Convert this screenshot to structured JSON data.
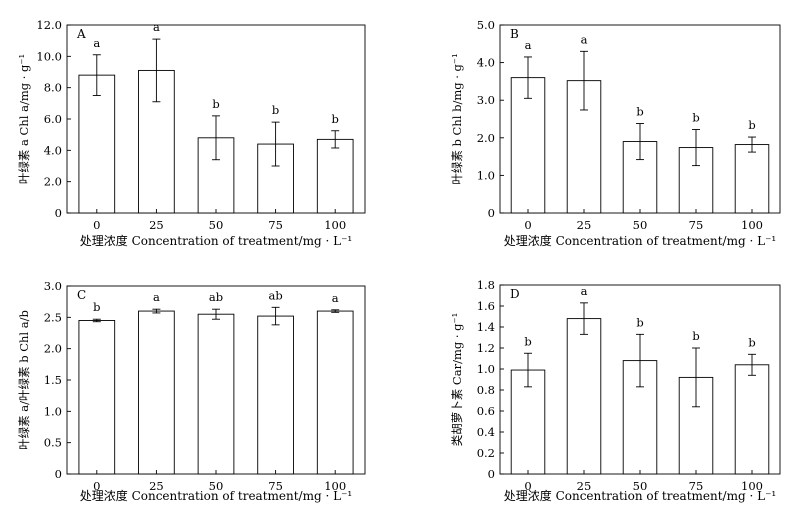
{
  "chart_data": [
    {
      "panel": "A",
      "type": "bar",
      "categories": [
        "0",
        "25",
        "50",
        "75",
        "100"
      ],
      "values": [
        8.8,
        9.1,
        4.8,
        4.4,
        4.7
      ],
      "errors": [
        1.3,
        2.0,
        1.4,
        1.4,
        0.55
      ],
      "labels": [
        "a",
        "a",
        "b",
        "b",
        "b"
      ],
      "ylim": [
        0,
        12
      ],
      "yticks": [
        "0",
        "2.0",
        "4.0",
        "6.0",
        "8.0",
        "10.0",
        "12.0"
      ],
      "xlabel": "处理浓度 Concentration of treatment/mg · L⁻¹",
      "ylabel": "叶绿素 a Chl a/mg · g⁻¹"
    },
    {
      "panel": "B",
      "type": "bar",
      "categories": [
        "0",
        "25",
        "50",
        "75",
        "100"
      ],
      "values": [
        3.6,
        3.52,
        1.9,
        1.74,
        1.82
      ],
      "errors": [
        0.55,
        0.78,
        0.48,
        0.48,
        0.2
      ],
      "labels": [
        "a",
        "a",
        "b",
        "b",
        "b"
      ],
      "ylim": [
        0,
        5
      ],
      "yticks": [
        "0",
        "1.0",
        "2.0",
        "3.0",
        "4.0",
        "5.0"
      ],
      "xlabel": "处理浓度 Concentration of treatment/mg · L⁻¹",
      "ylabel": "叶绿素 b Chl b/mg · g⁻¹"
    },
    {
      "panel": "C",
      "type": "bar",
      "categories": [
        "0",
        "25",
        "50",
        "75",
        "100"
      ],
      "values": [
        2.45,
        2.6,
        2.55,
        2.52,
        2.6
      ],
      "errors": [
        0.02,
        0.03,
        0.08,
        0.14,
        0.02
      ],
      "labels": [
        "b",
        "a",
        "ab",
        "ab",
        "a"
      ],
      "ylim": [
        0,
        3
      ],
      "yticks": [
        "0",
        "0.5",
        "1.0",
        "1.5",
        "2.0",
        "2.5",
        "3.0"
      ],
      "xlabel": "处理浓度 Concentration of treatment/mg · L⁻¹",
      "ylabel": "叶绿素 a/叶绿素 b Chl a/b"
    },
    {
      "panel": "D",
      "type": "bar",
      "categories": [
        "0",
        "25",
        "50",
        "75",
        "100"
      ],
      "values": [
        0.99,
        1.48,
        1.08,
        0.92,
        1.04
      ],
      "errors": [
        0.16,
        0.15,
        0.25,
        0.28,
        0.1
      ],
      "labels": [
        "b",
        "a",
        "b",
        "b",
        "b"
      ],
      "ylim": [
        0,
        1.8
      ],
      "yticks": [
        "0",
        "0.2",
        "0.4",
        "0.6",
        "0.8",
        "1.0",
        "1.2",
        "1.4",
        "1.6",
        "1.8"
      ],
      "xlabel": "处理浓度 Concentration of treatment/mg · L⁻¹",
      "ylabel": "类胡萝卜素 Car/mg · g⁻¹"
    }
  ]
}
